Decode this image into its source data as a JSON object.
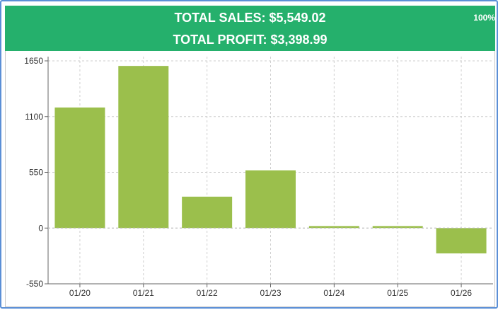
{
  "header": {
    "total_sales_label": "TOTAL SALES: $5,549.02",
    "total_profit_label": "TOTAL PROFIT: $3,398.99",
    "zoom": "100%"
  },
  "colors": {
    "header_bg": "#25b06c",
    "bar": "#9bbf4c",
    "frame_border": "#5b8fd6"
  },
  "chart_data": {
    "type": "bar",
    "categories": [
      "01/20",
      "01/21",
      "01/22",
      "01/23",
      "01/24",
      "01/25",
      "01/26"
    ],
    "values": [
      1190,
      1600,
      310,
      570,
      20,
      20,
      -250
    ],
    "yticks": [
      -550,
      0,
      550,
      1100,
      1650
    ],
    "ylim": [
      -550,
      1650
    ],
    "grid": true,
    "title": "",
    "xlabel": "",
    "ylabel": ""
  }
}
